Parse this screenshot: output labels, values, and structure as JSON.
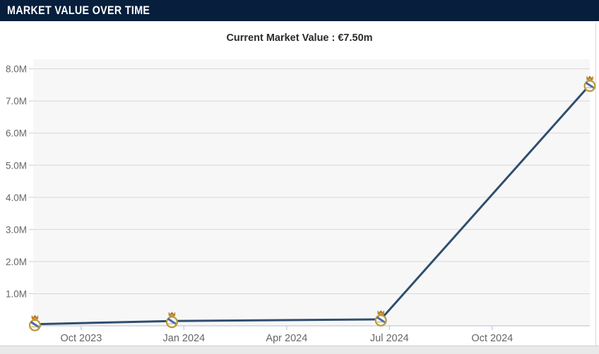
{
  "header": {
    "title": "MARKET VALUE OVER TIME"
  },
  "subtitle": {
    "text": "Current Market Value : €7.50m"
  },
  "colors": {
    "header_bg": "#071e3d",
    "header_text": "#ffffff",
    "subtitle_text": "#2b2b2b",
    "plot_bg": "#f7f7f7",
    "gridline": "#d8d8d8",
    "axis_line": "#c9d3e0",
    "tick": "#c9d3e0",
    "y_tick": "#cccccc",
    "axis_label": "#666666",
    "series_line": "#2f4e6e",
    "crest_gold": "#b79a3a",
    "crest_fill": "#fdf9ee",
    "crest_blue": "#3a57a7",
    "crest_red": "#c0392b",
    "page_strip": "#e9e9e9"
  },
  "chart_data": {
    "type": "line",
    "title": "MARKET VALUE OVER TIME",
    "subtitle": "Current Market Value : €7.50m",
    "xlabel": "",
    "ylabel": "",
    "y_unit": "€ million",
    "ylim_m": [
      0,
      8.3
    ],
    "x_range_months": [
      -1.4,
      14.85
    ],
    "grid": true,
    "legend": false,
    "y_ticks": [
      {
        "value_m": 1,
        "label": "1.0M"
      },
      {
        "value_m": 2,
        "label": "2.0M"
      },
      {
        "value_m": 3,
        "label": "3.0M"
      },
      {
        "value_m": 4,
        "label": "4.0M"
      },
      {
        "value_m": 5,
        "label": "5.0M"
      },
      {
        "value_m": 6,
        "label": "6.0M"
      },
      {
        "value_m": 7,
        "label": "7.0M"
      },
      {
        "value_m": 8,
        "label": "8.0M"
      }
    ],
    "x_ticks": [
      {
        "month_index": 0,
        "label": "Oct 2023"
      },
      {
        "month_index": 3,
        "label": "Jan 2024"
      },
      {
        "month_index": 6,
        "label": "Apr 2024"
      },
      {
        "month_index": 9,
        "label": "Jul 2024"
      },
      {
        "month_index": 12,
        "label": "Oct 2024"
      }
    ],
    "series": [
      {
        "name": "Market value",
        "color": "#2f4e6e",
        "marker": "real-madrid-crest",
        "points": [
          {
            "month_index": -1.35,
            "value_m": 0.05
          },
          {
            "month_index": 2.65,
            "value_m": 0.15
          },
          {
            "month_index": 8.75,
            "value_m": 0.2
          },
          {
            "month_index": 14.85,
            "value_m": 7.5
          }
        ]
      }
    ]
  }
}
